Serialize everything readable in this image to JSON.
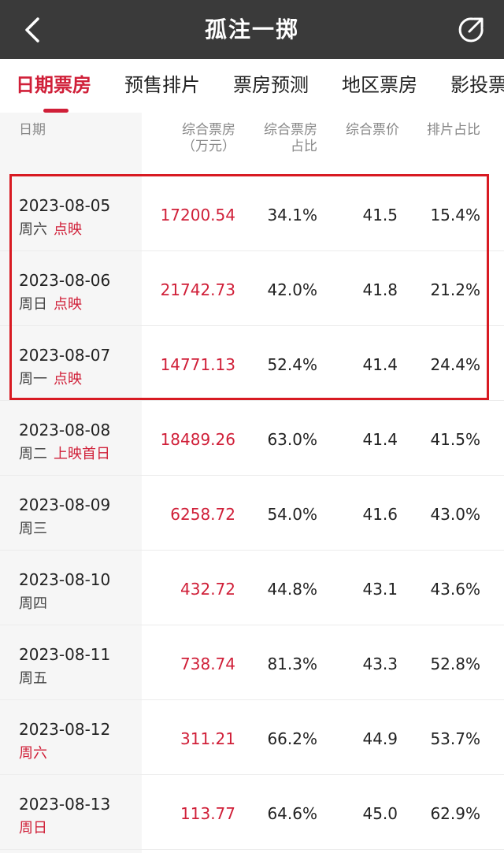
{
  "header": {
    "title": "孤注一掷",
    "back_icon": "chevron-left-icon",
    "share_icon": "share-icon"
  },
  "tabs": [
    {
      "label": "日期票房",
      "active": true
    },
    {
      "label": "预售排片",
      "active": false
    },
    {
      "label": "票房预测",
      "active": false
    },
    {
      "label": "地区票房",
      "active": false
    },
    {
      "label": "影投票",
      "active": false
    }
  ],
  "table": {
    "columns": {
      "date": "日期",
      "box_office": "综合票房",
      "box_office_unit": "（万元）",
      "share_line1": "综合票房",
      "share_line2": "占比",
      "avg_price": "综合票价",
      "schedule_share": "排片占比"
    },
    "rows": [
      {
        "date": "2023-08-05",
        "weekday": "周六",
        "note": "点映",
        "box_office": "17200.54",
        "share": "34.1%",
        "price": "41.5",
        "schedule": "15.4%"
      },
      {
        "date": "2023-08-06",
        "weekday": "周日",
        "note": "点映",
        "box_office": "21742.73",
        "share": "42.0%",
        "price": "41.8",
        "schedule": "21.2%"
      },
      {
        "date": "2023-08-07",
        "weekday": "周一",
        "note": "点映",
        "box_office": "14771.13",
        "share": "52.4%",
        "price": "41.4",
        "schedule": "24.4%"
      },
      {
        "date": "2023-08-08",
        "weekday": "周二",
        "note": "上映首日",
        "box_office": "18489.26",
        "share": "63.0%",
        "price": "41.4",
        "schedule": "41.5%"
      },
      {
        "date": "2023-08-09",
        "weekday": "周三",
        "note": "",
        "box_office": "6258.72",
        "share": "54.0%",
        "price": "41.6",
        "schedule": "43.0%"
      },
      {
        "date": "2023-08-10",
        "weekday": "周四",
        "note": "",
        "box_office": "432.72",
        "share": "44.8%",
        "price": "43.1",
        "schedule": "43.6%"
      },
      {
        "date": "2023-08-11",
        "weekday": "周五",
        "note": "",
        "box_office": "738.74",
        "share": "81.3%",
        "price": "43.3",
        "schedule": "52.8%"
      },
      {
        "date": "2023-08-12",
        "weekday": "周六",
        "note": "",
        "box_office": "311.21",
        "share": "66.2%",
        "price": "44.9",
        "schedule": "53.7%"
      },
      {
        "date": "2023-08-13",
        "weekday": "周日",
        "note": "",
        "box_office": "113.77",
        "share": "64.6%",
        "price": "45.0",
        "schedule": "62.9%"
      }
    ]
  },
  "colors": {
    "accent": "#d01f38",
    "topbar": "#3a3a3a",
    "highlight": "#d81a22"
  }
}
